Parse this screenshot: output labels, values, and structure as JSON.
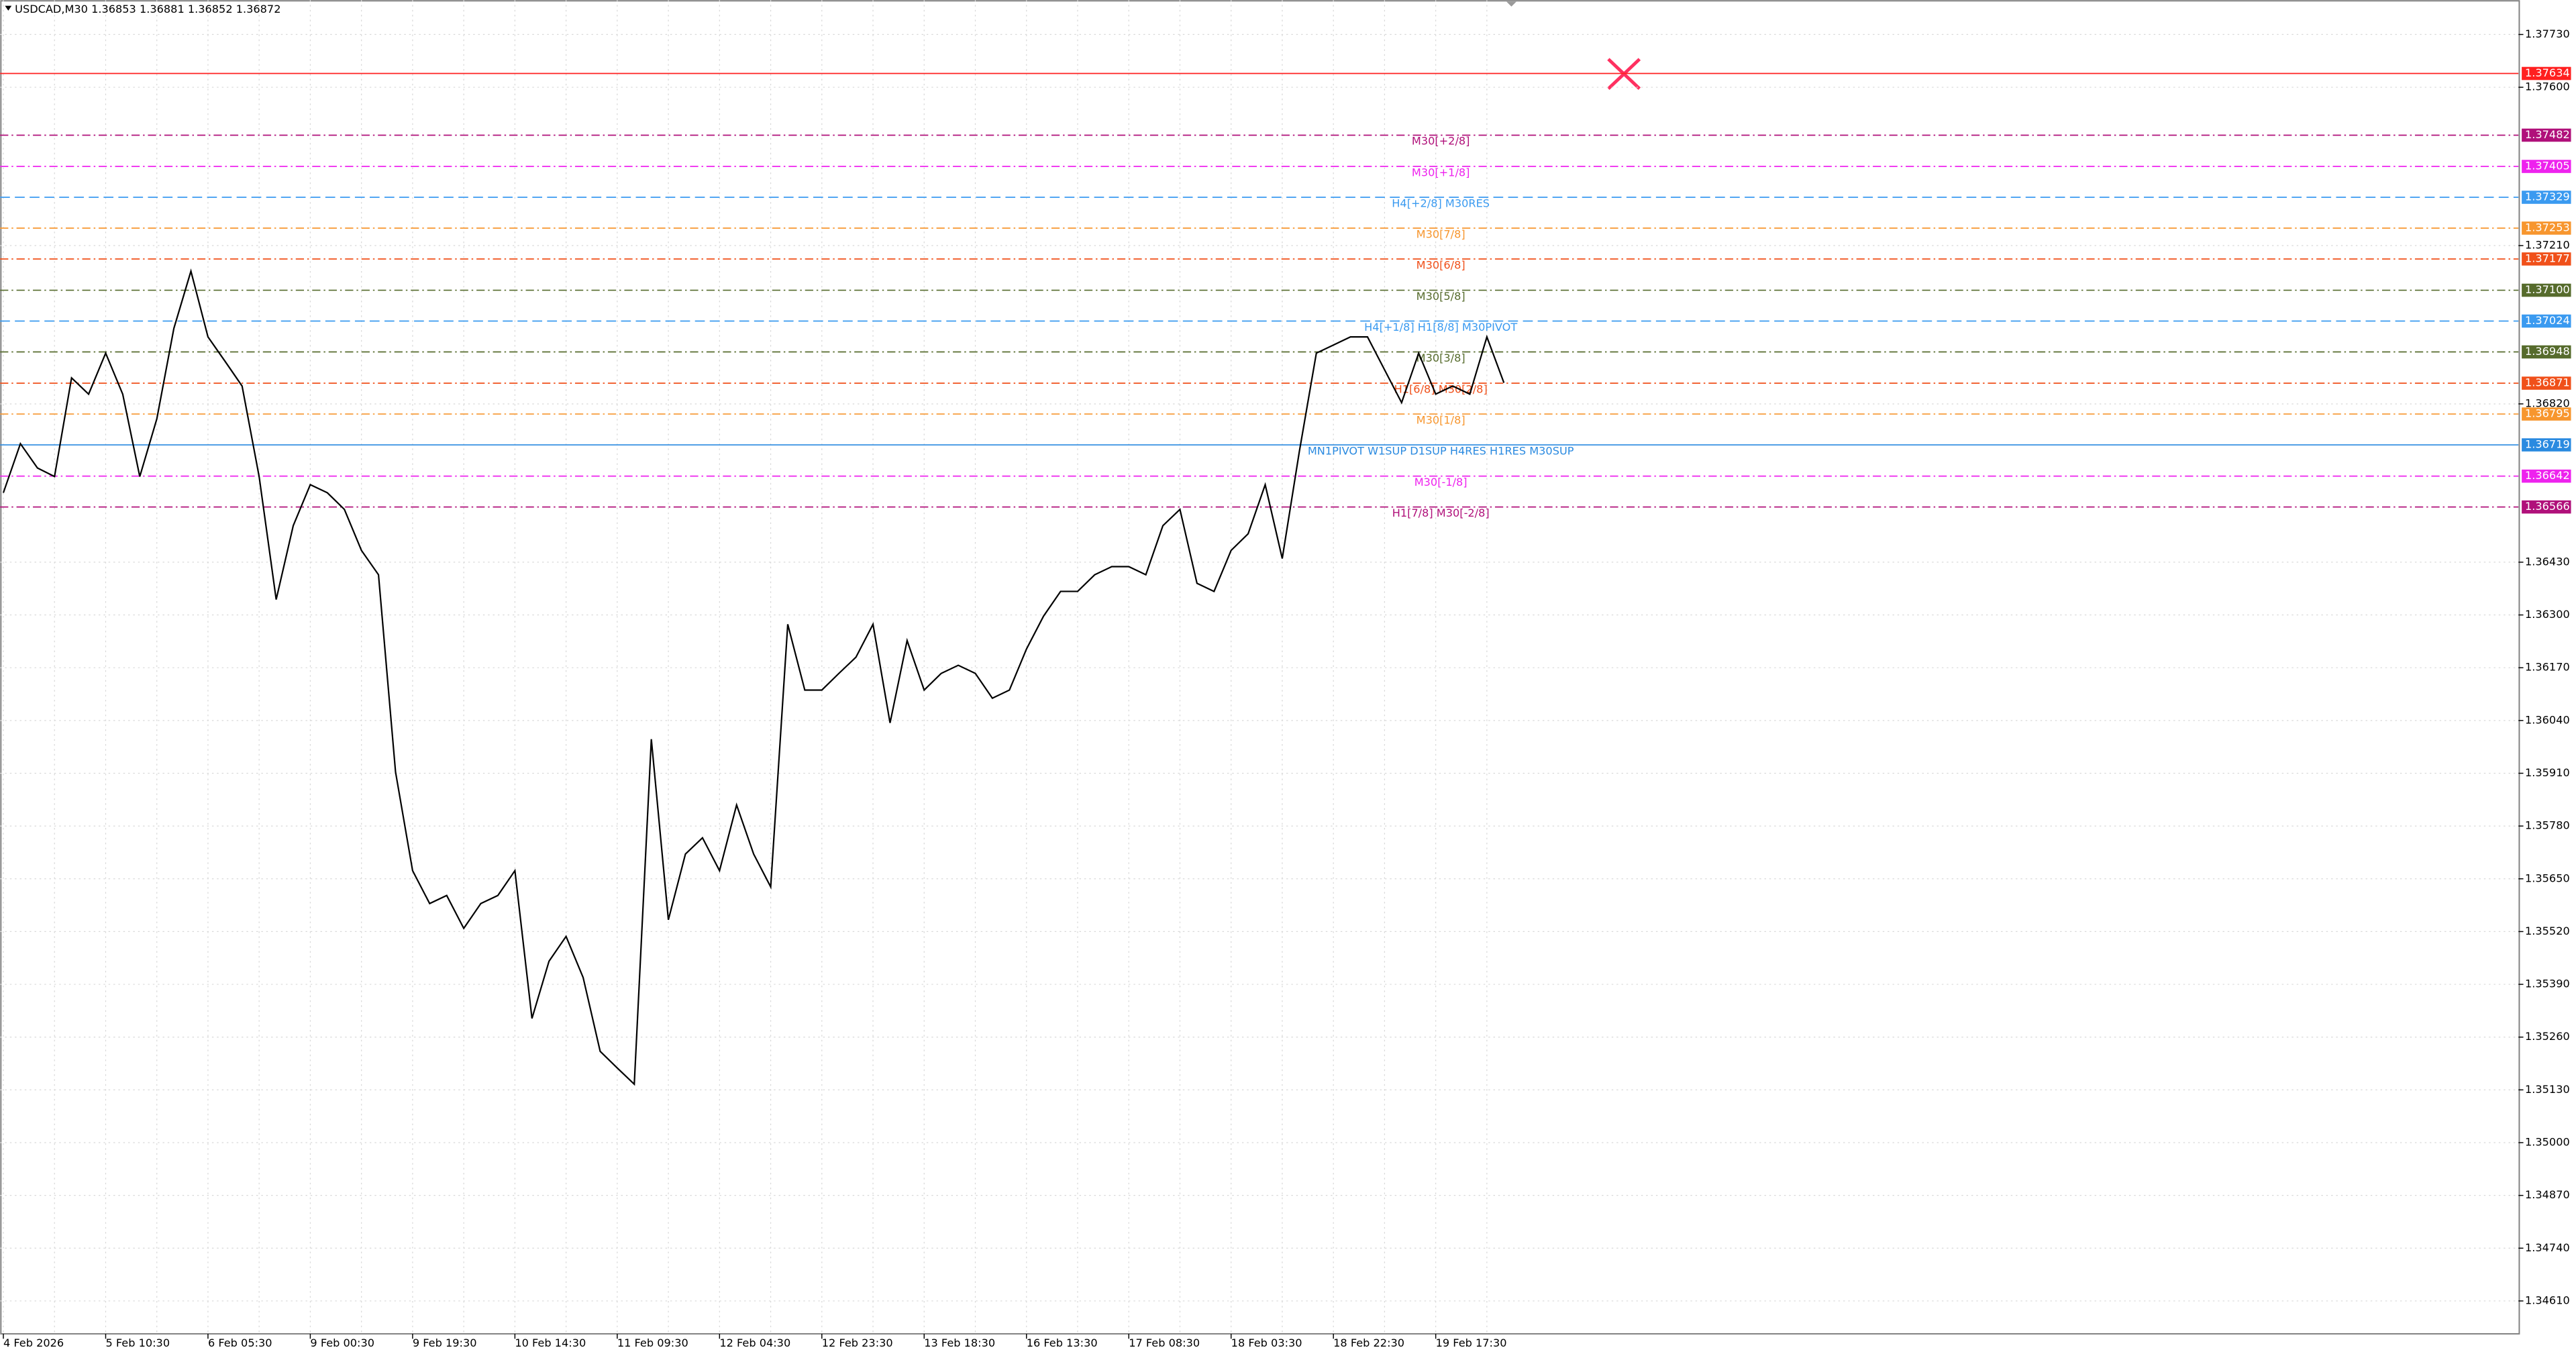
{
  "chart_data": {
    "type": "line",
    "title": "USDCAD,M30  1.36853 1.36881 1.36852 1.36872",
    "color": "#000000",
    "categories": [
      "4 Feb 2026",
      null,
      null,
      null,
      null,
      null,
      "5 Feb 10:30",
      null,
      null,
      null,
      null,
      null,
      "6 Feb 05:30",
      null,
      null,
      null,
      null,
      null,
      "9 Feb 00:30",
      null,
      null,
      null,
      null,
      null,
      "9 Feb 19:30",
      null,
      null,
      null,
      null,
      null,
      "10 Feb 14:30",
      null,
      null,
      null,
      null,
      null,
      "11 Feb 09:30",
      null,
      null,
      null,
      null,
      null,
      "12 Feb 04:30",
      null,
      null,
      null,
      null,
      null,
      "12 Feb 23:30",
      null,
      null,
      null,
      null,
      null,
      "13 Feb 18:30",
      null,
      null,
      null,
      null,
      null,
      "16 Feb 13:30",
      null,
      null,
      null,
      null,
      null,
      "17 Feb 08:30",
      null,
      null,
      null,
      null,
      null,
      "18 Feb 03:30",
      null,
      null,
      null,
      null,
      null,
      "18 Feb 22:30",
      null,
      null,
      null,
      null,
      null,
      "19 Feb 17:30",
      null,
      null,
      null,
      null
    ],
    "values": [
      1.36601,
      1.36722,
      1.36662,
      1.36641,
      1.36884,
      1.36844,
      1.36945,
      1.36844,
      1.36641,
      1.36783,
      1.37006,
      1.37147,
      1.36985,
      1.36925,
      1.36864,
      1.36641,
      1.36338,
      1.3652,
      1.36621,
      1.36601,
      1.3656,
      1.36459,
      1.36399,
      1.35913,
      1.3567,
      1.35589,
      1.35609,
      1.35528,
      1.35589,
      1.35609,
      1.3567,
      1.35306,
      1.35447,
      1.35508,
      1.35407,
      1.35225,
      1.35184,
      1.35144,
      1.35994,
      1.35549,
      1.35711,
      1.35751,
      1.3567,
      1.35832,
      1.35711,
      1.3563,
      1.36277,
      1.36115,
      1.36115,
      1.36156,
      1.36196,
      1.36277,
      1.36034,
      1.36237,
      1.36115,
      1.36156,
      1.36176,
      1.36156,
      1.36095,
      1.36115,
      1.36216,
      1.36297,
      1.36358,
      1.36358,
      1.36399,
      1.36419,
      1.36419,
      1.36399,
      1.3652,
      1.3656,
      1.36378,
      1.36358,
      1.36459,
      1.365,
      1.36621,
      1.36439,
      1.36702,
      1.36945,
      1.36965,
      1.36985,
      1.36985,
      1.36904,
      1.36823,
      1.36945,
      1.36844,
      1.36864,
      1.36844,
      1.36985,
      1.36872
    ],
    "ylim": [
      1.34529,
      1.37815
    ],
    "yticks": [
      {
        "value": 1.3773,
        "label": "1.37730"
      },
      {
        "value": 1.376,
        "label": "1.37600"
      },
      {
        "value": 1.3721,
        "label": "1.37210"
      },
      {
        "value": 1.3682,
        "label": "1.36820"
      },
      {
        "value": 1.3643,
        "label": "1.36430"
      },
      {
        "value": 1.363,
        "label": "1.36300"
      },
      {
        "value": 1.3617,
        "label": "1.36170"
      },
      {
        "value": 1.3604,
        "label": "1.36040"
      },
      {
        "value": 1.3591,
        "label": "1.35910"
      },
      {
        "value": 1.3578,
        "label": "1.35780"
      },
      {
        "value": 1.3565,
        "label": "1.35650"
      },
      {
        "value": 1.3552,
        "label": "1.35520"
      },
      {
        "value": 1.3539,
        "label": "1.35390"
      },
      {
        "value": 1.3526,
        "label": "1.35260"
      },
      {
        "value": 1.3513,
        "label": "1.35130"
      },
      {
        "value": 1.35,
        "label": "1.35000"
      },
      {
        "value": 1.3487,
        "label": "1.34870"
      },
      {
        "value": 1.3474,
        "label": "1.34740"
      },
      {
        "value": 1.3461,
        "label": "1.34610"
      }
    ],
    "grid": true,
    "levels": [
      {
        "value": 1.37634,
        "price_label": "1.37634",
        "color": "#ff2020",
        "style": "solid"
      },
      {
        "value": 1.37482,
        "price_label": "1.37482",
        "name": "M30[+2/8]",
        "color": "#b0107a",
        "style": "dashdot"
      },
      {
        "value": 1.37405,
        "price_label": "1.37405",
        "name": "M30[+1/8]",
        "color": "#ee22ee",
        "style": "dashdot"
      },
      {
        "value": 1.37329,
        "price_label": "1.37329",
        "name": "H4[+2/8] M30RES",
        "color": "#3a9af0",
        "style": "dashed"
      },
      {
        "value": 1.37253,
        "price_label": "1.37253",
        "name": "M30[7/8]",
        "color": "#f7962e",
        "style": "dashdot"
      },
      {
        "value": 1.37177,
        "price_label": "1.37177",
        "name": "M30[6/8]",
        "color": "#f0501a",
        "style": "dashdot"
      },
      {
        "value": 1.371,
        "price_label": "1.37100",
        "name": "M30[5/8]",
        "color": "#566b2c",
        "style": "dashdot"
      },
      {
        "value": 1.37024,
        "price_label": "1.37024",
        "name": "H4[+1/8] H1[8/8] M30PIVOT",
        "color": "#3a9af0",
        "style": "dashed"
      },
      {
        "value": 1.36948,
        "price_label": "1.36948",
        "name": "M30[3/8]",
        "color": "#566b2c",
        "style": "dashdot"
      },
      {
        "value": 1.36871,
        "price_label": "1.36871",
        "name": "H1[6/8] M30[2/8]",
        "color": "#f0501a",
        "style": "dashdot"
      },
      {
        "value": 1.36795,
        "price_label": "1.36795",
        "name": "M30[1/8]",
        "color": "#f7962e",
        "style": "dashdot"
      },
      {
        "value": 1.36719,
        "price_label": "1.36719",
        "name": "MN1PIVOT W1SUP D1SUP H4RES H1RES M30SUP",
        "color": "#2a8ae0",
        "style": "solid"
      },
      {
        "value": 1.36642,
        "price_label": "1.36642",
        "name": "M30[-1/8]",
        "color": "#ee22ee",
        "style": "dashdot"
      },
      {
        "value": 1.36566,
        "price_label": "1.36566",
        "name": "H1[7/8] M30[-2/8]",
        "color": "#b0107a",
        "style": "dashdot"
      }
    ]
  }
}
